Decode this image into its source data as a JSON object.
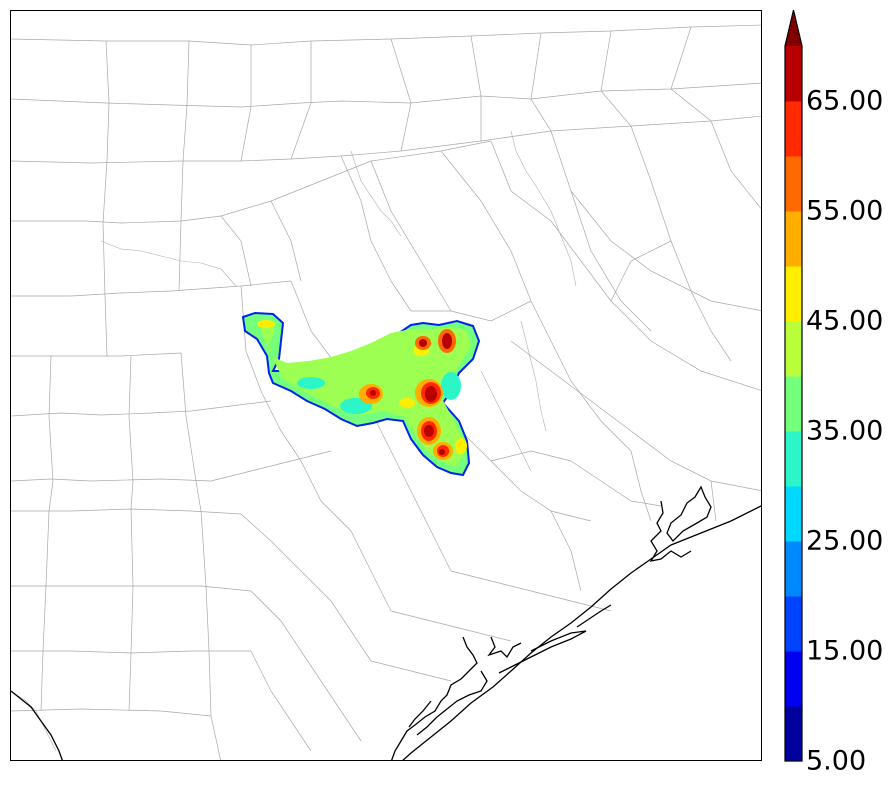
{
  "colorbar": {
    "tick_labels": [
      "5.00",
      "15.00",
      "25.00",
      "35.00",
      "45.00",
      "55.00",
      "65.00"
    ],
    "min": 5,
    "max": 70,
    "step": 5,
    "extend": "max",
    "colors": [
      "#00009f",
      "#0000f0",
      "#0044ff",
      "#0088ff",
      "#00d8ff",
      "#2cf5c8",
      "#74ff7c",
      "#b8ff3a",
      "#ffee00",
      "#ffae00",
      "#ff6a00",
      "#ff2a00",
      "#b80000"
    ],
    "extend_color": "#800000"
  },
  "map": {
    "coastline_color": "#000000",
    "county_line_color": "#a0a0a0"
  }
}
